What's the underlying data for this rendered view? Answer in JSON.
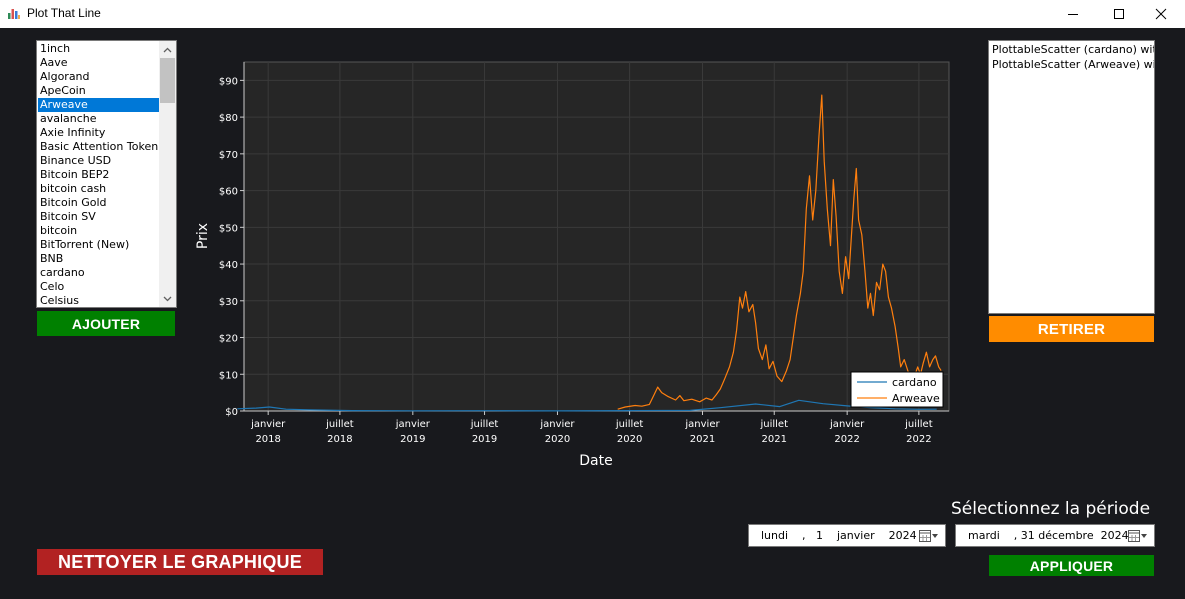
{
  "window": {
    "title": "Plot That Line",
    "minimize_icon": "minimize-icon",
    "maximize_icon": "maximize-icon",
    "close_icon": "close-icon"
  },
  "currency_list": {
    "items": [
      "1inch",
      "Aave",
      "Algorand",
      "ApeCoin",
      "Arweave",
      "avalanche",
      "Axie Infinity",
      "Basic Attention Token",
      "Binance USD",
      "Bitcoin BEP2",
      "bitcoin cash",
      "Bitcoin Gold",
      "Bitcoin SV",
      "bitcoin",
      "BitTorrent (New)",
      "BNB",
      "cardano",
      "Celo",
      "Celsius"
    ],
    "selected": "Arweave"
  },
  "buttons": {
    "add": "AJOUTER",
    "remove": "RETIRER",
    "clear": "NETTOYER LE GRAPHIQUE",
    "apply": "APPLIQUER"
  },
  "plotted_list": {
    "items": [
      "PlottableScatter (cardano) with",
      "PlottableScatter (Arweave) with"
    ]
  },
  "period": {
    "label": "Sélectionnez la période",
    "start": "lundi    ,   1    janvier    2024",
    "end": "mardi    , 31 décembre  2024"
  },
  "colors": {
    "background": "#18191d",
    "plot_area": "#262626",
    "cardano": "#1f77b4",
    "arweave": "#ff7f0e",
    "add_button": "#008000",
    "remove_button": "#ff8c00",
    "clear_button": "#b22222",
    "apply_button": "#008000"
  },
  "chart_data": {
    "type": "line",
    "title": "",
    "xlabel": "Date",
    "ylabel": "Prix",
    "ylim": [
      0,
      95
    ],
    "xlim": [
      "2017-11-01",
      "2022-09-15"
    ],
    "yticks": [
      "$0",
      "$10",
      "$20",
      "$30",
      "$40",
      "$50",
      "$60",
      "$70",
      "$80",
      "$90"
    ],
    "xticks": [
      {
        "month": "janvier",
        "year": "2018",
        "date": "2018-01-01"
      },
      {
        "month": "juillet",
        "year": "2018",
        "date": "2018-07-01"
      },
      {
        "month": "janvier",
        "year": "2019",
        "date": "2019-01-01"
      },
      {
        "month": "juillet",
        "year": "2019",
        "date": "2019-07-01"
      },
      {
        "month": "janvier",
        "year": "2020",
        "date": "2020-01-01"
      },
      {
        "month": "juillet",
        "year": "2020",
        "date": "2020-07-01"
      },
      {
        "month": "janvier",
        "year": "2021",
        "date": "2021-01-01"
      },
      {
        "month": "juillet",
        "year": "2021",
        "date": "2021-07-01"
      },
      {
        "month": "janvier",
        "year": "2022",
        "date": "2022-01-01"
      },
      {
        "month": "juillet",
        "year": "2022",
        "date": "2022-07-01"
      }
    ],
    "grid": true,
    "legend_position": "bottom-right",
    "series": [
      {
        "name": "cardano",
        "points": [
          [
            "2017-10-15",
            0.6
          ],
          [
            "2017-12-01",
            0.8
          ],
          [
            "2018-01-04",
            1.1
          ],
          [
            "2018-02-15",
            0.5
          ],
          [
            "2018-04-15",
            0.3
          ],
          [
            "2018-08-01",
            0.12
          ],
          [
            "2019-01-01",
            0.05
          ],
          [
            "2019-07-01",
            0.07
          ],
          [
            "2020-01-01",
            0.04
          ],
          [
            "2020-07-01",
            0.1
          ],
          [
            "2020-12-01",
            0.15
          ],
          [
            "2021-02-15",
            0.9
          ],
          [
            "2021-05-15",
            1.9
          ],
          [
            "2021-07-15",
            1.2
          ],
          [
            "2021-09-01",
            2.9
          ],
          [
            "2021-11-01",
            2.0
          ],
          [
            "2022-01-01",
            1.4
          ],
          [
            "2022-03-01",
            0.9
          ],
          [
            "2022-05-01",
            0.6
          ],
          [
            "2022-07-01",
            0.45
          ],
          [
            "2022-08-15",
            0.5
          ]
        ]
      },
      {
        "name": "Arweave",
        "points": [
          [
            "2020-06-01",
            0.5
          ],
          [
            "2020-06-20",
            1.1
          ],
          [
            "2020-07-15",
            1.5
          ],
          [
            "2020-08-01",
            1.3
          ],
          [
            "2020-08-20",
            1.8
          ],
          [
            "2020-09-01",
            4.5
          ],
          [
            "2020-09-10",
            6.5
          ],
          [
            "2020-09-20",
            5.0
          ],
          [
            "2020-10-05",
            4.0
          ],
          [
            "2020-10-25",
            3.0
          ],
          [
            "2020-11-05",
            4.2
          ],
          [
            "2020-11-15",
            2.8
          ],
          [
            "2020-12-05",
            3.2
          ],
          [
            "2020-12-25",
            2.5
          ],
          [
            "2021-01-10",
            3.5
          ],
          [
            "2021-01-25",
            3.0
          ],
          [
            "2021-02-05",
            4.5
          ],
          [
            "2021-02-15",
            6.0
          ],
          [
            "2021-02-25",
            8.5
          ],
          [
            "2021-03-10",
            12.0
          ],
          [
            "2021-03-20",
            16.0
          ],
          [
            "2021-03-28",
            22.0
          ],
          [
            "2021-04-05",
            31.0
          ],
          [
            "2021-04-12",
            28.0
          ],
          [
            "2021-04-20",
            32.5
          ],
          [
            "2021-04-28",
            27.0
          ],
          [
            "2021-05-08",
            29.0
          ],
          [
            "2021-05-15",
            24.0
          ],
          [
            "2021-05-22",
            17.0
          ],
          [
            "2021-06-01",
            14.0
          ],
          [
            "2021-06-10",
            18.0
          ],
          [
            "2021-06-18",
            11.5
          ],
          [
            "2021-06-28",
            13.5
          ],
          [
            "2021-07-08",
            9.5
          ],
          [
            "2021-07-20",
            8.0
          ],
          [
            "2021-08-01",
            11.0
          ],
          [
            "2021-08-10",
            14.0
          ],
          [
            "2021-08-18",
            20.0
          ],
          [
            "2021-08-26",
            26.0
          ],
          [
            "2021-09-05",
            32.0
          ],
          [
            "2021-09-12",
            38.0
          ],
          [
            "2021-09-20",
            55.0
          ],
          [
            "2021-09-28",
            64.0
          ],
          [
            "2021-10-06",
            52.0
          ],
          [
            "2021-10-14",
            60.0
          ],
          [
            "2021-10-22",
            75.0
          ],
          [
            "2021-10-29",
            86.0
          ],
          [
            "2021-11-04",
            68.0
          ],
          [
            "2021-11-12",
            55.0
          ],
          [
            "2021-11-20",
            45.0
          ],
          [
            "2021-11-27",
            63.0
          ],
          [
            "2021-12-04",
            53.0
          ],
          [
            "2021-12-12",
            38.0
          ],
          [
            "2021-12-20",
            32.0
          ],
          [
            "2021-12-28",
            42.0
          ],
          [
            "2022-01-05",
            36.0
          ],
          [
            "2022-01-12",
            48.0
          ],
          [
            "2022-01-18",
            58.0
          ],
          [
            "2022-01-24",
            66.0
          ],
          [
            "2022-01-30",
            52.0
          ],
          [
            "2022-02-07",
            48.0
          ],
          [
            "2022-02-15",
            38.0
          ],
          [
            "2022-02-22",
            28.0
          ],
          [
            "2022-03-01",
            32.0
          ],
          [
            "2022-03-08",
            26.0
          ],
          [
            "2022-03-16",
            35.0
          ],
          [
            "2022-03-24",
            33.0
          ],
          [
            "2022-04-01",
            40.0
          ],
          [
            "2022-04-08",
            38.0
          ],
          [
            "2022-04-15",
            31.0
          ],
          [
            "2022-04-23",
            28.0
          ],
          [
            "2022-05-02",
            23.0
          ],
          [
            "2022-05-10",
            17.0
          ],
          [
            "2022-05-16",
            12.0
          ],
          [
            "2022-05-25",
            14.0
          ],
          [
            "2022-06-03",
            11.0
          ],
          [
            "2022-06-12",
            8.0
          ],
          [
            "2022-06-20",
            9.5
          ],
          [
            "2022-06-28",
            12.0
          ],
          [
            "2022-07-05",
            10.0
          ],
          [
            "2022-07-12",
            13.0
          ],
          [
            "2022-07-20",
            16.0
          ],
          [
            "2022-07-28",
            12.0
          ],
          [
            "2022-08-05",
            14.0
          ],
          [
            "2022-08-12",
            15.0
          ],
          [
            "2022-08-20",
            12.0
          ],
          [
            "2022-08-26",
            11.0
          ]
        ]
      }
    ]
  }
}
